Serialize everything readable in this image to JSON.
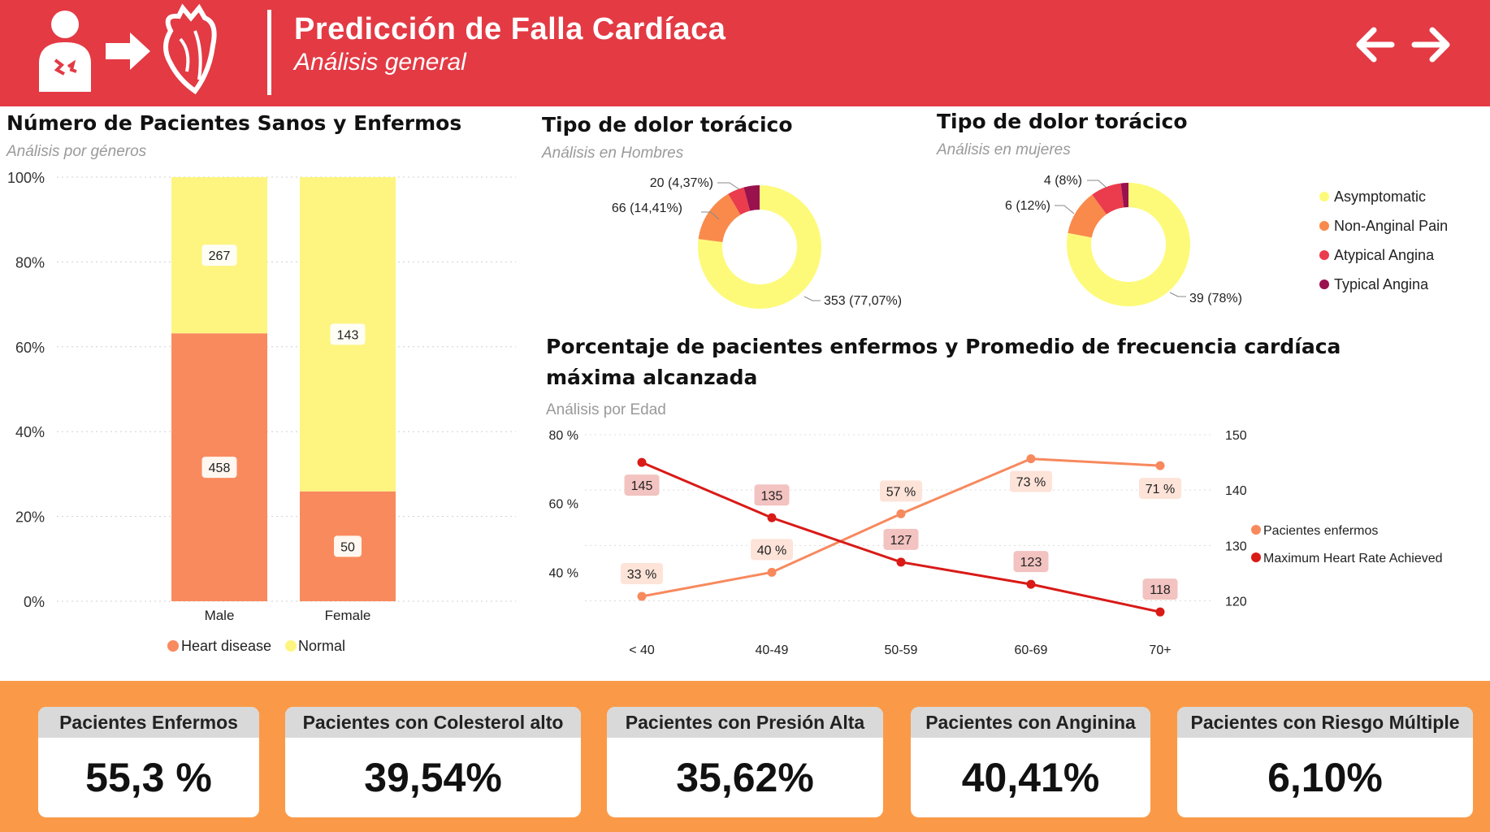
{
  "header": {
    "title": "Predicción de Falla Cardíaca",
    "subtitle": "Análisis general"
  },
  "bar_panel": {
    "title": "Número de Pacientes Sanos y Enfermos",
    "subtitle": "Análisis por géneros"
  },
  "pie_men_panel": {
    "title": "Tipo de dolor torácico",
    "subtitle": "Análisis en Hombres"
  },
  "pie_women_panel": {
    "title": "Tipo de dolor torácico",
    "subtitle": "Análisis en mujeres"
  },
  "line_panel": {
    "title_line1": "Porcentaje de pacientes enfermos y Promedio de frecuencia cardíaca",
    "title_line2": "máxima alcanzada",
    "subtitle": "Análisis por Edad"
  },
  "kpis": [
    {
      "label": "Pacientes Enfermos",
      "value": "55,3 %"
    },
    {
      "label": "Pacientes con Colesterol alto",
      "value": "39,54%"
    },
    {
      "label": "Pacientes con Presión Alta",
      "value": "35,62%"
    },
    {
      "label": "Pacientes con Anginina",
      "value": "40,41%"
    },
    {
      "label": "Pacientes con Riesgo Múltiple",
      "value": "6,10%"
    }
  ],
  "colors": {
    "header_bg": "#e33a44",
    "kpi_bg": "#fa9a48",
    "heart_disease": "#f98a5e",
    "normal": "#fdf580",
    "asymptomatic": "#fdfa7a",
    "non_anginal": "#f98a4c",
    "atypical": "#ea3c4c",
    "typical": "#99124e",
    "pct_line": "#f7895d",
    "hr_line": "#d91a17"
  },
  "chart_data": [
    {
      "type": "bar",
      "stacked": "100%",
      "categories": [
        "Male",
        "Female"
      ],
      "series": [
        {
          "name": "Heart disease",
          "values": [
            458,
            50
          ]
        },
        {
          "name": "Normal",
          "values": [
            267,
            143
          ]
        }
      ],
      "y_ticks": [
        "0%",
        "20%",
        "40%",
        "60%",
        "80%",
        "100%"
      ],
      "ylim": [
        0,
        100
      ],
      "legend": "bottom"
    },
    {
      "type": "pie",
      "donut": true,
      "labels": [
        "Asymptomatic",
        "Non-Anginal Pain",
        "Atypical Angina",
        "Typical Angina"
      ],
      "values": [
        353,
        66,
        20,
        19
      ],
      "data_labels": [
        "353 (77,07%)",
        "66 (14,41%)",
        "20 (4,37%)",
        ""
      ]
    },
    {
      "type": "pie",
      "donut": true,
      "labels": [
        "Asymptomatic",
        "Non-Anginal Pain",
        "Atypical Angina",
        "Typical Angina"
      ],
      "values": [
        39,
        6,
        4,
        1
      ],
      "data_labels": [
        "39 (78%)",
        "6 (12%)",
        "4 (8%)",
        ""
      ],
      "legend": "right"
    },
    {
      "type": "line",
      "categories": [
        "< 40",
        "40-49",
        "50-59",
        "60-69",
        "70+"
      ],
      "series": [
        {
          "name": "Pacientes enfermos",
          "axis": "left",
          "values": [
            33,
            40,
            57,
            73,
            71
          ],
          "labels": [
            "33 %",
            "40 %",
            "57 %",
            "73 %",
            "71 %"
          ]
        },
        {
          "name": "Maximum Heart Rate Achieved",
          "axis": "right",
          "values": [
            145,
            135,
            127,
            123,
            118
          ],
          "labels": [
            "145",
            "135",
            "127",
            "123",
            "118"
          ]
        }
      ],
      "y_left_ticks": [
        "40 %",
        "60 %",
        "80 %"
      ],
      "y_left_range": [
        33,
        80
      ],
      "y_right_ticks": [
        "120",
        "130",
        "140",
        "150"
      ],
      "y_right_range": [
        117,
        150
      ],
      "legend": "right"
    }
  ]
}
